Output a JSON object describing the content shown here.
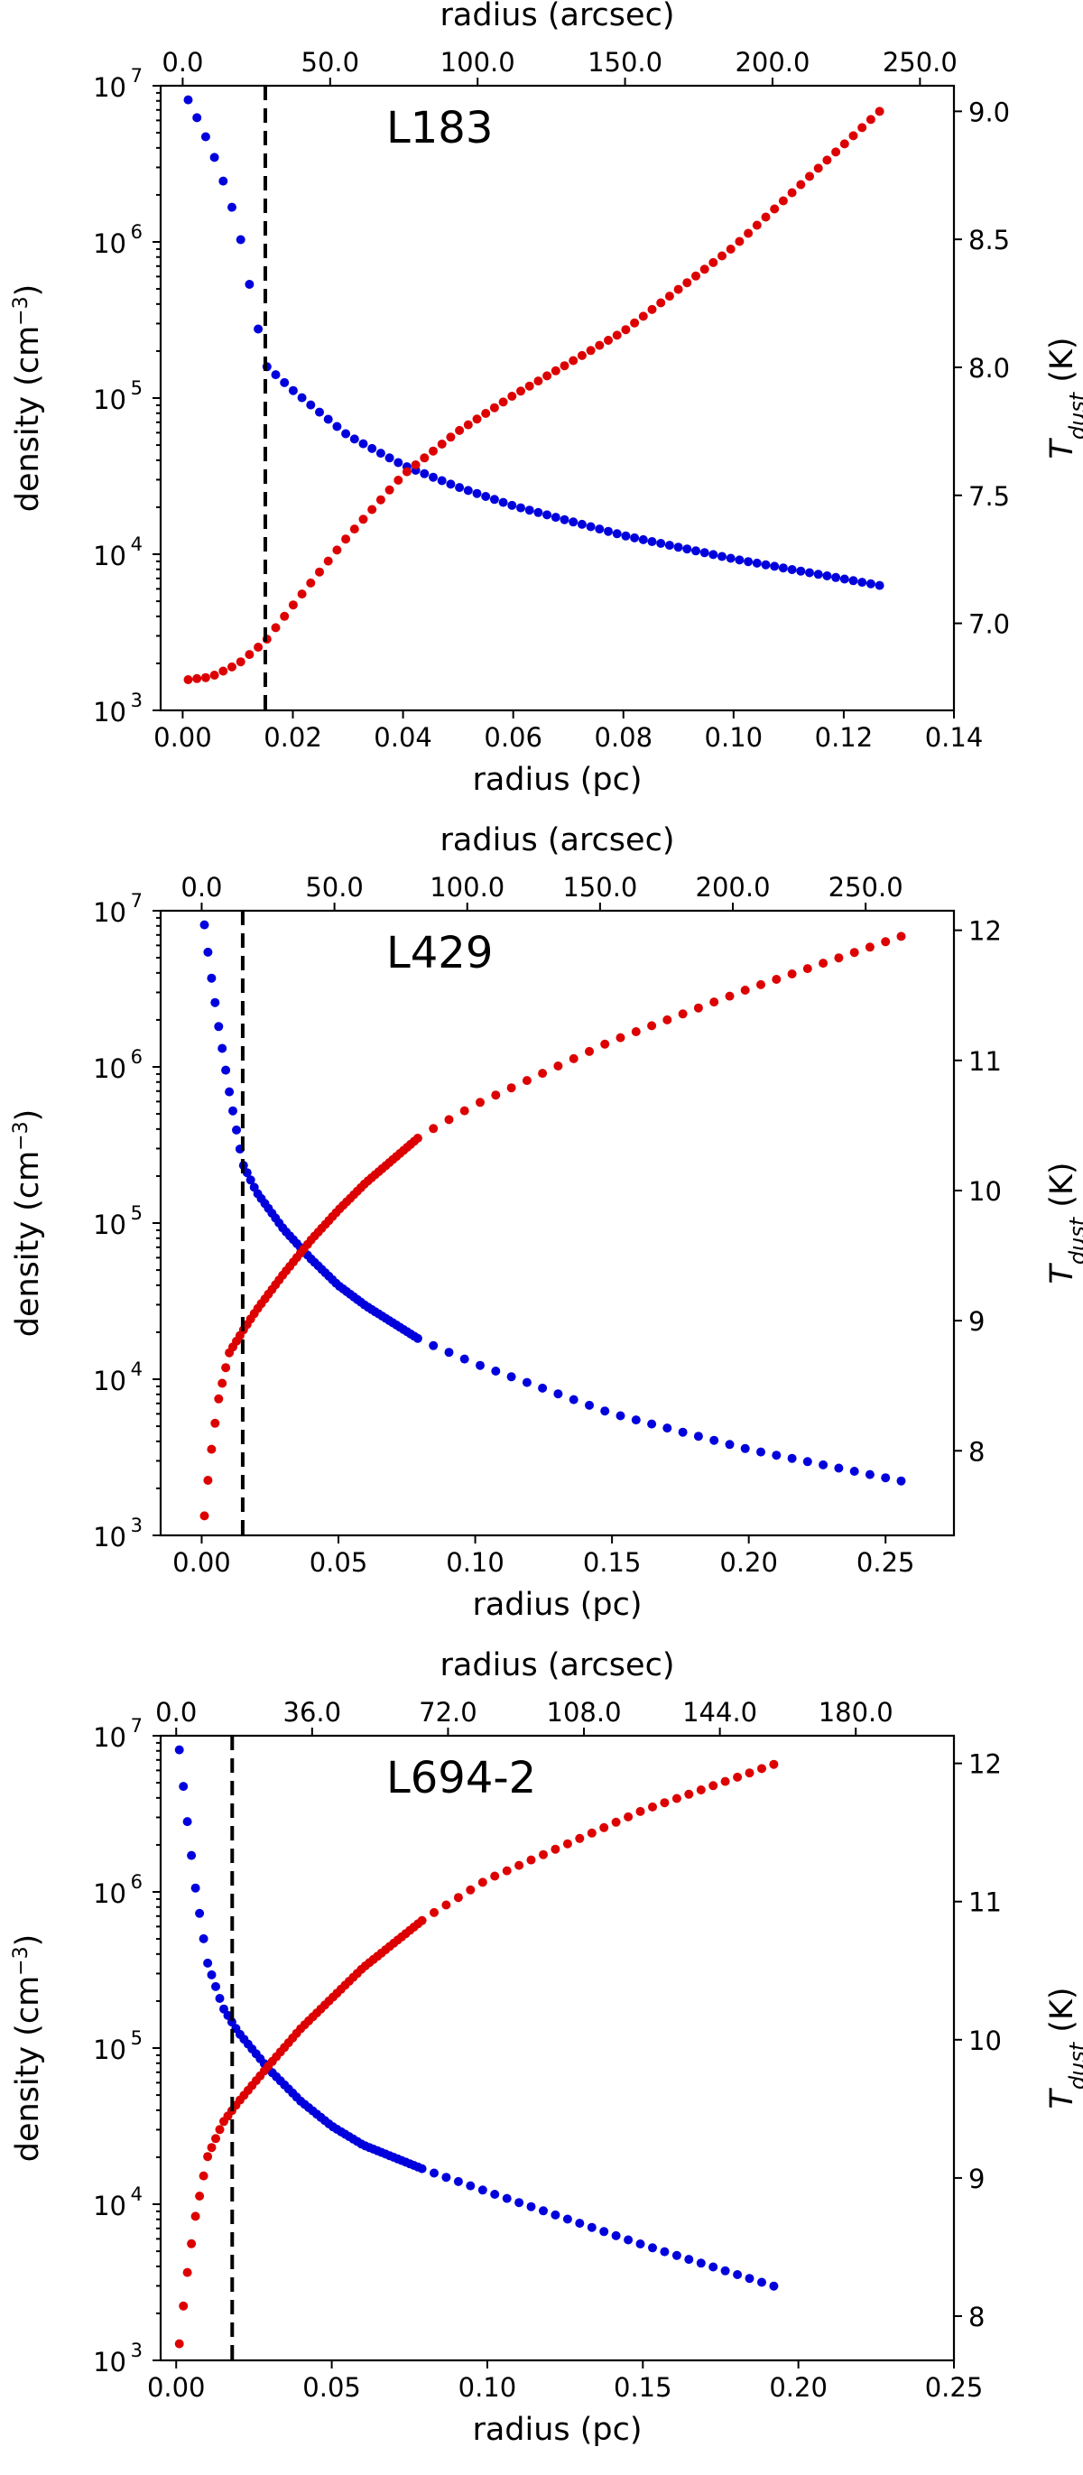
{
  "chart_data": [
    {
      "type": "scatter",
      "title": "L183",
      "xlabel": "radius (pc)",
      "xlabel_top": "radius (arcsec)",
      "ylabel": "density (cm",
      "ylabel_sup": "−3",
      "ylabel_close": ")",
      "ylabel_right": "T",
      "ylabel_right_sub": "dust",
      "ylabel_right_unit": " (K)",
      "xlim": [
        -0.004,
        0.14
      ],
      "xticks": [
        "0.00",
        "0.02",
        "0.04",
        "0.06",
        "0.08",
        "0.10",
        "0.12",
        "0.14"
      ],
      "xticks_top": [
        "0.0",
        "50.0",
        "100.0",
        "150.0",
        "200.0",
        "250.0"
      ],
      "xticks_top_values": [
        0,
        50,
        100,
        150,
        200,
        250
      ],
      "arcsec_per_pc": 1868,
      "ylim_log": [
        3,
        7
      ],
      "yticks_base": [
        "10",
        "10",
        "10",
        "10",
        "10"
      ],
      "yticks_exp": [
        "3",
        "4",
        "5",
        "6",
        "7"
      ],
      "y2lim": [
        6.66,
        9.1
      ],
      "y2ticks": [
        "7.0",
        "7.5",
        "8.0",
        "8.5",
        "9.0"
      ],
      "vline_x": 0.015,
      "series": [
        {
          "name": "density",
          "axis": "left",
          "color": "#0000dd",
          "x_start": 0.001,
          "x_end": 0.1265,
          "n": 80,
          "log_y_at_x": [
            [
              0.001,
              6.91
            ],
            [
              0.0035,
              6.73
            ],
            [
              0.0065,
              6.48
            ],
            [
              0.01,
              6.11
            ],
            [
              0.015,
              5.21
            ],
            [
              0.02,
              5.05
            ],
            [
              0.03,
              4.76
            ],
            [
              0.04,
              4.57
            ],
            [
              0.05,
              4.43
            ],
            [
              0.06,
              4.31
            ],
            [
              0.08,
              4.12
            ],
            [
              0.1,
              3.97
            ],
            [
              0.1265,
              3.8
            ]
          ]
        },
        {
          "name": "T_dust",
          "axis": "right",
          "color": "#dd0000",
          "x_start": 0.001,
          "x_end": 0.1265,
          "n": 80,
          "y_at_x": [
            [
              0.001,
              6.78
            ],
            [
              0.005,
              6.79
            ],
            [
              0.01,
              6.84
            ],
            [
              0.015,
              6.93
            ],
            [
              0.02,
              7.07
            ],
            [
              0.03,
              7.34
            ],
            [
              0.04,
              7.58
            ],
            [
              0.05,
              7.75
            ],
            [
              0.06,
              7.89
            ],
            [
              0.08,
              8.14
            ],
            [
              0.1,
              8.47
            ],
            [
              0.1265,
              9.0
            ]
          ]
        }
      ]
    },
    {
      "type": "scatter",
      "title": "L429",
      "xlabel": "radius (pc)",
      "xlabel_top": "radius (arcsec)",
      "ylabel": "density (cm",
      "ylabel_sup": "−3",
      "ylabel_close": ")",
      "ylabel_right": "T",
      "ylabel_right_sub": "dust",
      "ylabel_right_unit": " (K)",
      "xlim": [
        -0.015,
        0.275
      ],
      "xticks": [
        "0.00",
        "0.05",
        "0.10",
        "0.15",
        "0.20",
        "0.25"
      ],
      "xticks_top": [
        "0.0",
        "50.0",
        "100.0",
        "150.0",
        "200.0",
        "250.0"
      ],
      "xticks_top_values": [
        0,
        50,
        100,
        150,
        200,
        250
      ],
      "arcsec_per_pc": 1030,
      "ylim_log": [
        3,
        7
      ],
      "yticks_base": [
        "10",
        "10",
        "10",
        "10",
        "10"
      ],
      "yticks_exp": [
        "3",
        "4",
        "5",
        "6",
        "7"
      ],
      "y2lim": [
        7.35,
        12.15
      ],
      "y2ticks": [
        "8",
        "9",
        "10",
        "11",
        "12"
      ],
      "vline_x": 0.015,
      "series": [
        {
          "name": "density",
          "axis": "left",
          "color": "#0000dd",
          "x_start": 0.001,
          "x_end": 0.258,
          "n": 100,
          "dense_until": 0.08,
          "dense_step": 0.0013,
          "sparse_step": 0.0057,
          "log_y_at_x": [
            [
              0.001,
              6.91
            ],
            [
              0.003,
              6.64
            ],
            [
              0.006,
              6.28
            ],
            [
              0.01,
              5.85
            ],
            [
              0.015,
              5.38
            ],
            [
              0.02,
              5.2
            ],
            [
              0.03,
              4.96
            ],
            [
              0.04,
              4.77
            ],
            [
              0.05,
              4.6
            ],
            [
              0.06,
              4.47
            ],
            [
              0.08,
              4.25
            ],
            [
              0.1,
              4.1
            ],
            [
              0.15,
              3.78
            ],
            [
              0.2,
              3.55
            ],
            [
              0.258,
              3.34
            ]
          ]
        },
        {
          "name": "T_dust",
          "axis": "right",
          "color": "#dd0000",
          "x_start": 0.001,
          "x_end": 0.258,
          "n": 100,
          "dense_until": 0.08,
          "dense_step": 0.0013,
          "sparse_step": 0.0057,
          "y_at_x": [
            [
              0.001,
              7.5
            ],
            [
              0.003,
              7.92
            ],
            [
              0.006,
              8.38
            ],
            [
              0.01,
              8.75
            ],
            [
              0.015,
              8.92
            ],
            [
              0.02,
              9.08
            ],
            [
              0.03,
              9.36
            ],
            [
              0.04,
              9.62
            ],
            [
              0.05,
              9.85
            ],
            [
              0.06,
              10.06
            ],
            [
              0.08,
              10.42
            ],
            [
              0.1,
              10.66
            ],
            [
              0.15,
              11.15
            ],
            [
              0.2,
              11.55
            ],
            [
              0.258,
              11.97
            ]
          ]
        }
      ]
    },
    {
      "type": "scatter",
      "title": "L694-2",
      "xlabel": "radius (pc)",
      "xlabel_top": "radius (arcsec)",
      "ylabel": "density (cm",
      "ylabel_sup": "−3",
      "ylabel_close": ")",
      "ylabel_right": "T",
      "ylabel_right_sub": "dust",
      "ylabel_right_unit": " (K)",
      "xlim": [
        -0.005,
        0.25
      ],
      "xticks": [
        "0.00",
        "0.05",
        "0.10",
        "0.15",
        "0.20",
        "0.25"
      ],
      "xticks_top": [
        "0.0",
        "36.0",
        "72.0",
        "108.0",
        "144.0",
        "180.0"
      ],
      "xticks_top_values": [
        0,
        36,
        72,
        108,
        144,
        180
      ],
      "arcsec_per_pc": 824,
      "ylim_log": [
        3,
        7
      ],
      "yticks_base": [
        "10",
        "10",
        "10",
        "10",
        "10"
      ],
      "yticks_exp": [
        "3",
        "4",
        "5",
        "6",
        "7"
      ],
      "y2lim": [
        7.68,
        12.2
      ],
      "y2ticks": [
        "8",
        "9",
        "10",
        "11",
        "12"
      ],
      "vline_x": 0.018,
      "series": [
        {
          "name": "density",
          "axis": "left",
          "color": "#0000dd",
          "x_start": 0.001,
          "x_end": 0.193,
          "n": 100,
          "dense_until": 0.08,
          "dense_step": 0.0013,
          "sparse_step": 0.0039,
          "log_y_at_x": [
            [
              0.001,
              6.91
            ],
            [
              0.003,
              6.55
            ],
            [
              0.006,
              6.05
            ],
            [
              0.01,
              5.55
            ],
            [
              0.015,
              5.26
            ],
            [
              0.02,
              5.1
            ],
            [
              0.03,
              4.86
            ],
            [
              0.04,
              4.66
            ],
            [
              0.05,
              4.5
            ],
            [
              0.06,
              4.38
            ],
            [
              0.08,
              4.22
            ],
            [
              0.1,
              4.08
            ],
            [
              0.15,
              3.74
            ],
            [
              0.193,
              3.47
            ]
          ]
        },
        {
          "name": "T_dust",
          "axis": "right",
          "color": "#dd0000",
          "x_start": 0.001,
          "x_end": 0.193,
          "n": 100,
          "dense_until": 0.08,
          "dense_step": 0.0013,
          "sparse_step": 0.0039,
          "y_at_x": [
            [
              0.001,
              7.8
            ],
            [
              0.003,
              8.22
            ],
            [
              0.006,
              8.7
            ],
            [
              0.01,
              9.15
            ],
            [
              0.015,
              9.4
            ],
            [
              0.02,
              9.55
            ],
            [
              0.03,
              9.82
            ],
            [
              0.04,
              10.08
            ],
            [
              0.05,
              10.3
            ],
            [
              0.06,
              10.52
            ],
            [
              0.08,
              10.88
            ],
            [
              0.1,
              11.16
            ],
            [
              0.15,
              11.66
            ],
            [
              0.193,
              12.0
            ]
          ]
        }
      ]
    }
  ]
}
